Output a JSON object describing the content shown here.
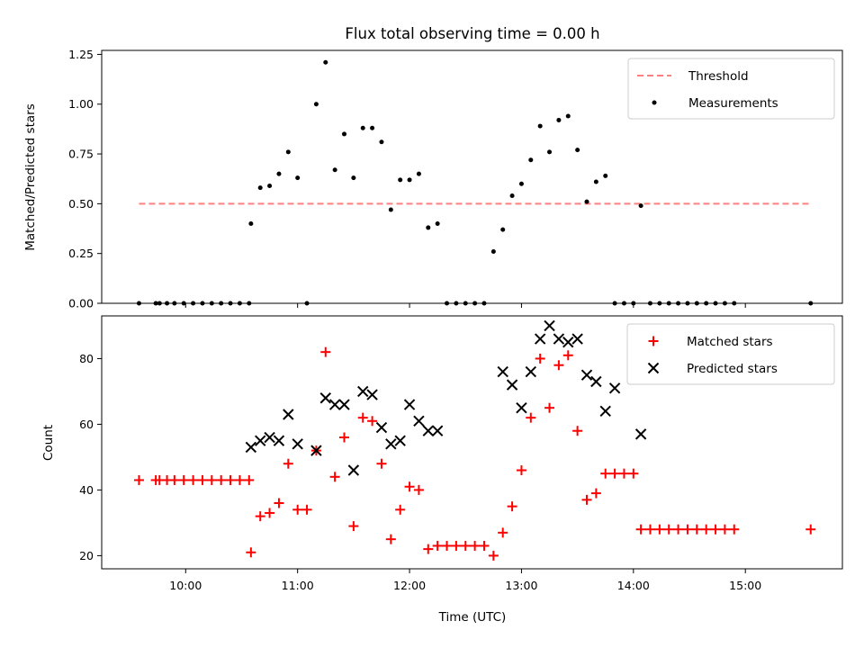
{
  "chart_data": {
    "title": "Flux total observing time = 0.00 h",
    "xlabel": "Time (UTC)",
    "xlim": [
      "09:15",
      "15:52"
    ],
    "xticks": [
      "10:00",
      "11:00",
      "12:00",
      "13:00",
      "14:00",
      "15:00"
    ],
    "panels": [
      {
        "type": "scatter",
        "ylabel": "Matched/Predicted stars",
        "ylim": [
          0,
          1.27
        ],
        "yticks": [
          "0.00",
          "0.25",
          "0.50",
          "0.75",
          "1.00",
          "1.25"
        ],
        "legend_position": "top-right",
        "colors": {
          "threshold": "#ff8080",
          "measurements": "#000000"
        },
        "threshold": {
          "name": "Threshold",
          "value": 0.5,
          "x_start": "09:35",
          "x_end": "15:35"
        },
        "series": [
          {
            "name": "Measurements",
            "points": [
              [
                "09:35",
                0
              ],
              [
                "09:44",
                0
              ],
              [
                "09:46",
                0
              ],
              [
                "09:50",
                0
              ],
              [
                "09:54",
                0
              ],
              [
                "09:59",
                0
              ],
              [
                "10:04",
                0
              ],
              [
                "10:09",
                0
              ],
              [
                "10:14",
                0
              ],
              [
                "10:19",
                0
              ],
              [
                "10:24",
                0
              ],
              [
                "10:29",
                0
              ],
              [
                "10:34",
                0
              ],
              [
                "10:35",
                0.4
              ],
              [
                "10:40",
                0.58
              ],
              [
                "10:45",
                0.59
              ],
              [
                "10:50",
                0.65
              ],
              [
                "10:55",
                0.76
              ],
              [
                "11:00",
                0.63
              ],
              [
                "11:05",
                0
              ],
              [
                "11:10",
                1.0
              ],
              [
                "11:15",
                1.21
              ],
              [
                "11:20",
                0.67
              ],
              [
                "11:25",
                0.85
              ],
              [
                "11:30",
                0.63
              ],
              [
                "11:35",
                0.88
              ],
              [
                "11:40",
                0.88
              ],
              [
                "11:45",
                0.81
              ],
              [
                "11:50",
                0.47
              ],
              [
                "11:55",
                0.62
              ],
              [
                "12:00",
                0.62
              ],
              [
                "12:05",
                0.65
              ],
              [
                "12:10",
                0.38
              ],
              [
                "12:15",
                0.4
              ],
              [
                "12:20",
                0
              ],
              [
                "12:25",
                0
              ],
              [
                "12:30",
                0
              ],
              [
                "12:35",
                0
              ],
              [
                "12:40",
                0
              ],
              [
                "12:45",
                0.26
              ],
              [
                "12:50",
                0.37
              ],
              [
                "12:55",
                0.54
              ],
              [
                "13:00",
                0.6
              ],
              [
                "13:05",
                0.72
              ],
              [
                "13:10",
                0.89
              ],
              [
                "13:15",
                0.76
              ],
              [
                "13:20",
                0.92
              ],
              [
                "13:25",
                0.94
              ],
              [
                "13:30",
                0.77
              ],
              [
                "13:35",
                0.51
              ],
              [
                "13:40",
                0.61
              ],
              [
                "13:45",
                0.64
              ],
              [
                "13:50",
                0
              ],
              [
                "13:55",
                0
              ],
              [
                "14:00",
                0
              ],
              [
                "14:04",
                0.49
              ],
              [
                "14:09",
                0
              ],
              [
                "14:14",
                0
              ],
              [
                "14:19",
                0
              ],
              [
                "14:24",
                0
              ],
              [
                "14:29",
                0
              ],
              [
                "14:34",
                0
              ],
              [
                "14:39",
                0
              ],
              [
                "14:44",
                0
              ],
              [
                "14:49",
                0
              ],
              [
                "14:54",
                0
              ],
              [
                "15:35",
                0
              ]
            ]
          }
        ]
      },
      {
        "type": "scatter",
        "ylabel": "Count",
        "ylim": [
          16,
          93
        ],
        "yticks": [
          "20",
          "40",
          "60",
          "80"
        ],
        "legend_position": "top-right",
        "colors": {
          "matched": "#ff0000",
          "predicted": "#000000"
        },
        "series": [
          {
            "name": "Matched stars",
            "marker": "plus",
            "points": [
              [
                "09:35",
                43
              ],
              [
                "09:44",
                43
              ],
              [
                "09:46",
                43
              ],
              [
                "09:50",
                43
              ],
              [
                "09:54",
                43
              ],
              [
                "09:59",
                43
              ],
              [
                "10:04",
                43
              ],
              [
                "10:09",
                43
              ],
              [
                "10:14",
                43
              ],
              [
                "10:19",
                43
              ],
              [
                "10:24",
                43
              ],
              [
                "10:29",
                43
              ],
              [
                "10:34",
                43
              ],
              [
                "10:35",
                21
              ],
              [
                "10:40",
                32
              ],
              [
                "10:45",
                33
              ],
              [
                "10:50",
                36
              ],
              [
                "10:55",
                48
              ],
              [
                "11:00",
                34
              ],
              [
                "11:05",
                34
              ],
              [
                "11:10",
                52
              ],
              [
                "11:15",
                82
              ],
              [
                "11:20",
                44
              ],
              [
                "11:25",
                56
              ],
              [
                "11:30",
                29
              ],
              [
                "11:35",
                62
              ],
              [
                "11:40",
                61
              ],
              [
                "11:45",
                48
              ],
              [
                "11:50",
                25
              ],
              [
                "11:55",
                34
              ],
              [
                "12:00",
                41
              ],
              [
                "12:05",
                40
              ],
              [
                "12:10",
                22
              ],
              [
                "12:15",
                23
              ],
              [
                "12:20",
                23
              ],
              [
                "12:25",
                23
              ],
              [
                "12:30",
                23
              ],
              [
                "12:35",
                23
              ],
              [
                "12:40",
                23
              ],
              [
                "12:45",
                20
              ],
              [
                "12:50",
                27
              ],
              [
                "12:55",
                35
              ],
              [
                "13:00",
                46
              ],
              [
                "13:05",
                62
              ],
              [
                "13:10",
                80
              ],
              [
                "13:15",
                65
              ],
              [
                "13:20",
                78
              ],
              [
                "13:25",
                81
              ],
              [
                "13:30",
                58
              ],
              [
                "13:35",
                37
              ],
              [
                "13:40",
                39
              ],
              [
                "13:45",
                45
              ],
              [
                "13:50",
                45
              ],
              [
                "13:55",
                45
              ],
              [
                "14:00",
                45
              ],
              [
                "14:04",
                28
              ],
              [
                "14:09",
                28
              ],
              [
                "14:14",
                28
              ],
              [
                "14:19",
                28
              ],
              [
                "14:24",
                28
              ],
              [
                "14:29",
                28
              ],
              [
                "14:34",
                28
              ],
              [
                "14:39",
                28
              ],
              [
                "14:44",
                28
              ],
              [
                "14:49",
                28
              ],
              [
                "14:54",
                28
              ],
              [
                "15:35",
                28
              ]
            ]
          },
          {
            "name": "Predicted stars",
            "marker": "x",
            "points": [
              [
                "10:35",
                53
              ],
              [
                "10:40",
                55
              ],
              [
                "10:45",
                56
              ],
              [
                "10:50",
                55
              ],
              [
                "10:55",
                63
              ],
              [
                "11:00",
                54
              ],
              [
                "11:10",
                52
              ],
              [
                "11:15",
                68
              ],
              [
                "11:20",
                66
              ],
              [
                "11:25",
                66
              ],
              [
                "11:30",
                46
              ],
              [
                "11:35",
                70
              ],
              [
                "11:40",
                69
              ],
              [
                "11:45",
                59
              ],
              [
                "11:50",
                54
              ],
              [
                "11:55",
                55
              ],
              [
                "12:00",
                66
              ],
              [
                "12:05",
                61
              ],
              [
                "12:10",
                58
              ],
              [
                "12:15",
                58
              ],
              [
                "12:50",
                76
              ],
              [
                "12:55",
                72
              ],
              [
                "13:00",
                65
              ],
              [
                "13:05",
                76
              ],
              [
                "13:10",
                86
              ],
              [
                "13:15",
                90
              ],
              [
                "13:20",
                86
              ],
              [
                "13:25",
                85
              ],
              [
                "13:30",
                86
              ],
              [
                "13:35",
                75
              ],
              [
                "13:40",
                73
              ],
              [
                "13:45",
                64
              ],
              [
                "13:50",
                71
              ],
              [
                "14:04",
                57
              ]
            ]
          }
        ]
      }
    ]
  }
}
